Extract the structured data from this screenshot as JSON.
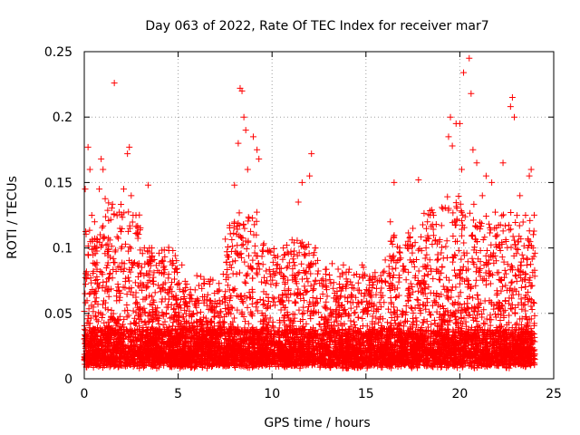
{
  "chart_data": {
    "type": "scatter",
    "title": "Day 063 of 2022, Rate Of TEC Index for receiver mar7",
    "xlabel": "GPS time / hours",
    "ylabel": "ROTI / TECUs",
    "xlim": [
      0,
      25
    ],
    "ylim": [
      0,
      0.25
    ],
    "xticks": [
      0,
      5,
      10,
      15,
      20,
      25
    ],
    "yticks": [
      0,
      0.05,
      0.1,
      0.15,
      0.2,
      0.25
    ],
    "xtick_labels": [
      "0",
      "5",
      "10",
      "15",
      "20",
      "25"
    ],
    "ytick_labels": [
      "0",
      "0.05",
      "0.1",
      "0.15",
      "0.2",
      "0.25"
    ],
    "grid": true,
    "marker": "+",
    "color": "#ff0000",
    "data_range_hours": [
      0,
      24
    ],
    "series": [
      {
        "name": "ROTI",
        "points": [
          [
            0.05,
            0.145
          ],
          [
            0.2,
            0.177
          ],
          [
            0.3,
            0.16
          ],
          [
            0.4,
            0.125
          ],
          [
            0.55,
            0.12
          ],
          [
            0.8,
            0.145
          ],
          [
            0.9,
            0.168
          ],
          [
            1.0,
            0.16
          ],
          [
            1.6,
            0.226
          ],
          [
            1.9,
            0.115
          ],
          [
            2.1,
            0.145
          ],
          [
            2.3,
            0.172
          ],
          [
            2.4,
            0.177
          ],
          [
            2.5,
            0.14
          ],
          [
            2.6,
            0.125
          ],
          [
            3.2,
            0.1
          ],
          [
            3.4,
            0.148
          ],
          [
            3.6,
            0.1
          ],
          [
            4.5,
            0.098
          ],
          [
            4.6,
            0.07
          ],
          [
            5.2,
            0.087
          ],
          [
            5.5,
            0.055
          ],
          [
            6.0,
            0.05
          ],
          [
            7.2,
            0.06
          ],
          [
            7.4,
            0.08
          ],
          [
            8.0,
            0.148
          ],
          [
            8.2,
            0.18
          ],
          [
            8.3,
            0.222
          ],
          [
            8.4,
            0.22
          ],
          [
            8.5,
            0.2
          ],
          [
            8.6,
            0.19
          ],
          [
            8.7,
            0.16
          ],
          [
            9.0,
            0.185
          ],
          [
            9.2,
            0.175
          ],
          [
            9.3,
            0.168
          ],
          [
            9.8,
            0.097
          ],
          [
            10.6,
            0.1
          ],
          [
            11.0,
            0.097
          ],
          [
            11.4,
            0.135
          ],
          [
            11.6,
            0.15
          ],
          [
            12.0,
            0.155
          ],
          [
            12.1,
            0.172
          ],
          [
            12.3,
            0.1
          ],
          [
            13.2,
            0.088
          ],
          [
            13.8,
            0.087
          ],
          [
            14.5,
            0.08
          ],
          [
            14.8,
            0.087
          ],
          [
            15.3,
            0.055
          ],
          [
            16.3,
            0.12
          ],
          [
            16.5,
            0.15
          ],
          [
            16.8,
            0.1
          ],
          [
            17.5,
            0.115
          ],
          [
            17.8,
            0.152
          ],
          [
            18.2,
            0.1
          ],
          [
            18.6,
            0.125
          ],
          [
            19.1,
            0.13
          ],
          [
            19.4,
            0.185
          ],
          [
            19.5,
            0.2
          ],
          [
            19.6,
            0.178
          ],
          [
            19.8,
            0.195
          ],
          [
            20.0,
            0.195
          ],
          [
            20.1,
            0.16
          ],
          [
            20.2,
            0.234
          ],
          [
            20.5,
            0.245
          ],
          [
            20.6,
            0.218
          ],
          [
            20.7,
            0.175
          ],
          [
            20.9,
            0.165
          ],
          [
            21.2,
            0.14
          ],
          [
            21.4,
            0.155
          ],
          [
            21.7,
            0.15
          ],
          [
            22.0,
            0.11
          ],
          [
            22.3,
            0.165
          ],
          [
            22.7,
            0.208
          ],
          [
            22.8,
            0.215
          ],
          [
            22.9,
            0.2
          ],
          [
            23.2,
            0.14
          ],
          [
            23.5,
            0.125
          ],
          [
            23.7,
            0.155
          ],
          [
            23.8,
            0.16
          ],
          [
            23.9,
            0.1
          ]
        ]
      }
    ]
  }
}
